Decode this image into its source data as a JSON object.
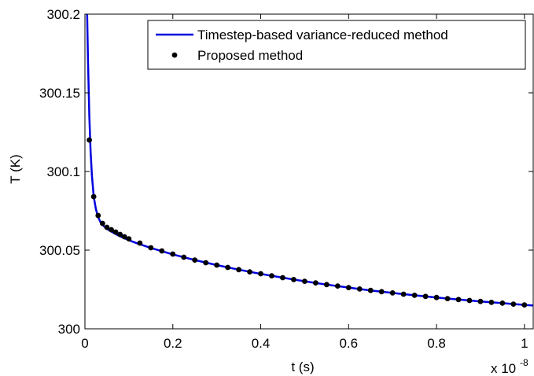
{
  "chart_data": {
    "type": "line",
    "title": "",
    "xlabel": "t (s)",
    "ylabel": "T (K)",
    "x_multiplier_label": "x 10",
    "x_multiplier_exponent": "-8",
    "xlim": [
      0,
      1.02
    ],
    "ylim": [
      300,
      300.2
    ],
    "x_unit_scale": 1e-08,
    "xticks": [
      0,
      0.2,
      0.4,
      0.6,
      0.8,
      1
    ],
    "xtick_labels": [
      "0",
      "0.2",
      "0.4",
      "0.6",
      "0.8",
      "1"
    ],
    "yticks": [
      300,
      300.05,
      300.1,
      300.15,
      300.2
    ],
    "ytick_labels": [
      "300",
      "300.05",
      "300.1",
      "300.15",
      "300.2"
    ],
    "grid": false,
    "legend_position": "top-right",
    "colors": {
      "line": "#0000e0",
      "markers": "#000000",
      "axes": "#000000"
    },
    "series": [
      {
        "name": "Timestep-based variance-reduced method",
        "style": "line",
        "x": [
          0.005,
          0.007,
          0.01,
          0.013,
          0.016,
          0.02,
          0.025,
          0.03,
          0.035,
          0.04,
          0.05,
          0.06,
          0.07,
          0.08,
          0.09,
          0.1,
          0.12,
          0.15,
          0.2,
          0.25,
          0.3,
          0.35,
          0.4,
          0.45,
          0.5,
          0.55,
          0.6,
          0.65,
          0.7,
          0.75,
          0.8,
          0.85,
          0.9,
          0.95,
          1.0,
          1.02
        ],
        "y": [
          300.2,
          300.17,
          300.135,
          300.112,
          300.097,
          300.084,
          300.076,
          300.071,
          300.068,
          300.066,
          300.0635,
          300.0618,
          300.0602,
          300.0588,
          300.0575,
          300.0563,
          300.0542,
          300.0514,
          300.0473,
          300.0437,
          300.0405,
          300.0376,
          300.0349,
          300.0325,
          300.0302,
          300.0281,
          300.0262,
          300.0244,
          300.0228,
          300.0213,
          300.0199,
          300.0186,
          300.0174,
          300.0163,
          300.0152,
          300.0148
        ]
      },
      {
        "name": "Proposed method",
        "style": "markers",
        "x": [
          0.01,
          0.02,
          0.03,
          0.04,
          0.05,
          0.06,
          0.07,
          0.08,
          0.09,
          0.1,
          0.125,
          0.15,
          0.175,
          0.2,
          0.225,
          0.25,
          0.275,
          0.3,
          0.325,
          0.35,
          0.375,
          0.4,
          0.425,
          0.45,
          0.475,
          0.5,
          0.525,
          0.55,
          0.575,
          0.6,
          0.625,
          0.65,
          0.675,
          0.7,
          0.725,
          0.75,
          0.775,
          0.8,
          0.825,
          0.85,
          0.875,
          0.9,
          0.925,
          0.95,
          0.975,
          1.0
        ],
        "y": [
          300.12,
          300.084,
          300.072,
          300.067,
          300.0645,
          300.063,
          300.0615,
          300.06,
          300.0585,
          300.0572,
          300.0545,
          300.0515,
          300.0495,
          300.0475,
          300.0455,
          300.0437,
          300.042,
          300.0405,
          300.039,
          300.0376,
          300.0362,
          300.035,
          300.0337,
          300.0325,
          300.0313,
          300.0302,
          300.0292,
          300.0281,
          300.0272,
          300.0262,
          300.0253,
          300.0244,
          300.0236,
          300.0228,
          300.022,
          300.0213,
          300.0206,
          300.0199,
          300.0192,
          300.0186,
          300.018,
          300.0174,
          300.0168,
          300.0163,
          300.0157,
          300.0152
        ]
      }
    ]
  }
}
